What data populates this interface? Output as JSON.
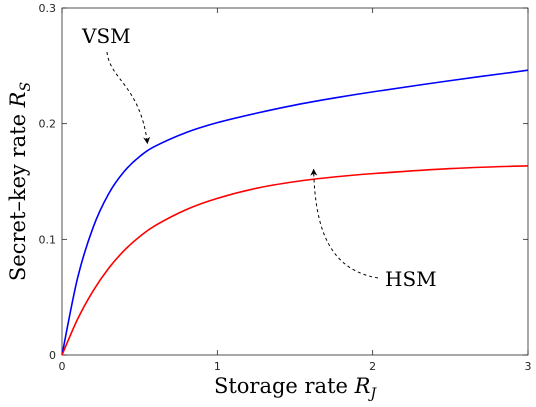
{
  "chart_data": {
    "type": "line",
    "xlabel": "Storage rate",
    "xlabel_symbol": "R",
    "xlabel_subscript": "J",
    "ylabel": "Secret–key rate",
    "ylabel_symbol": "R",
    "ylabel_subscript": "S",
    "xlim": [
      0,
      3
    ],
    "ylim": [
      0,
      0.3
    ],
    "xticks": [
      0,
      1,
      2,
      3
    ],
    "xtick_labels": [
      "0",
      "1",
      "2",
      "3"
    ],
    "yticks": [
      0,
      0.1,
      0.2,
      0.3
    ],
    "ytick_labels": [
      "0",
      "0.1",
      "0.2",
      "0.3"
    ],
    "grid": false,
    "series": [
      {
        "name": "VSM",
        "color": "#0000ff",
        "x": [
          0,
          0.1,
          0.2,
          0.3,
          0.4,
          0.5,
          0.6,
          0.8,
          1.0,
          1.25,
          1.5,
          1.75,
          2.0,
          2.5,
          3.0
        ],
        "y": [
          0,
          0.0664,
          0.1102,
          0.1393,
          0.1586,
          0.1716,
          0.1805,
          0.1924,
          0.2009,
          0.209,
          0.2161,
          0.2221,
          0.2275,
          0.2372,
          0.2462
        ]
      },
      {
        "name": "HSM",
        "color": "#ff0000",
        "x": [
          0,
          0.1,
          0.2,
          0.3,
          0.4,
          0.5,
          0.6,
          0.8,
          1.0,
          1.25,
          1.5,
          1.75,
          2.0,
          2.5,
          3.0
        ],
        "y": [
          0,
          0.0309,
          0.0554,
          0.0749,
          0.0903,
          0.1023,
          0.1119,
          0.1257,
          0.1354,
          0.1441,
          0.1499,
          0.1539,
          0.1568,
          0.1612,
          0.1636
        ]
      }
    ],
    "annotations": [
      {
        "text": "VSM",
        "series": "VSM",
        "point_x": 0.55
      },
      {
        "text": "HSM",
        "series": "HSM",
        "point_x": 1.62
      }
    ]
  }
}
